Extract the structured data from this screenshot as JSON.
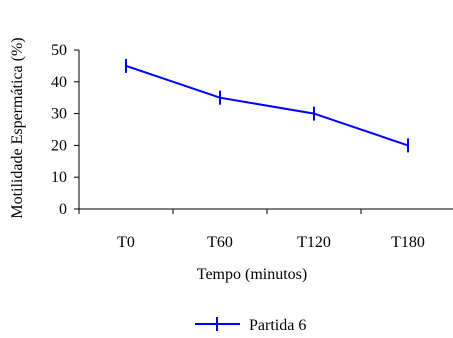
{
  "chart_data": {
    "type": "line",
    "title": "",
    "xlabel": "Tempo (minutos)",
    "ylabel": "Motilidade Espermática (%)",
    "categories": [
      "T0",
      "T60",
      "T120",
      "T180"
    ],
    "y_ticks": [
      "0",
      "10",
      "20",
      "30",
      "40",
      "50"
    ],
    "ylim": [
      0,
      50
    ],
    "grid": false,
    "legend_placement": "bottom-center",
    "series": [
      {
        "name": "Partida 6",
        "values": [
          45,
          35,
          30,
          20
        ],
        "color": "#0000ff",
        "marker": "plus-icon"
      }
    ]
  }
}
